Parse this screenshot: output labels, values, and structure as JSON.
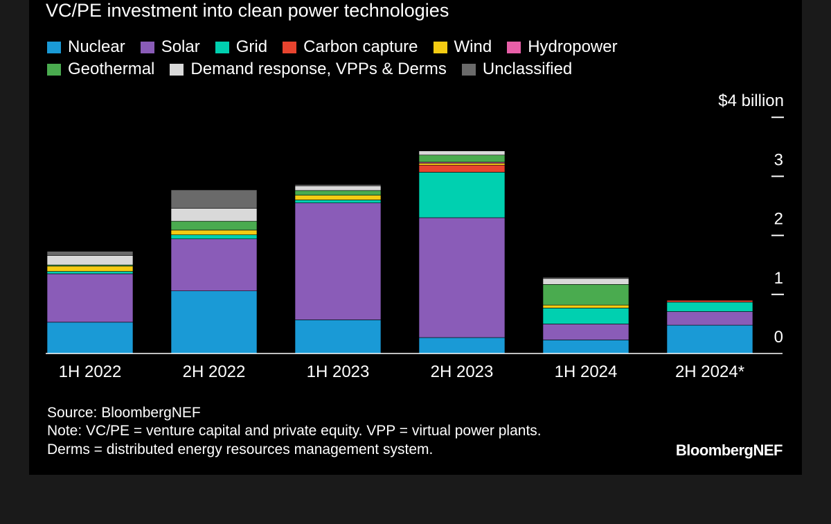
{
  "colors": {
    "background": "#000000",
    "outer": "#1a1a1a",
    "text": "#ffffff"
  },
  "legend": [
    {
      "label": "Nuclear",
      "color": "#1a9ad6"
    },
    {
      "label": "Solar",
      "color": "#8a5cb8"
    },
    {
      "label": "Grid",
      "color": "#00d0b0"
    },
    {
      "label": "Carbon capture",
      "color": "#e8442f"
    },
    {
      "label": "Wind",
      "color": "#f5cc13"
    },
    {
      "label": "Hydropower",
      "color": "#e85fa8"
    },
    {
      "label": "Geothermal",
      "color": "#4aab4f"
    },
    {
      "label": "Demand response, VPPs & Derms",
      "color": "#d9d9d9"
    },
    {
      "label": "Unclassified",
      "color": "#6a6a6a"
    }
  ],
  "chart_data": {
    "type": "bar",
    "stacked": true,
    "title": "VC/PE investment into clean power technologies",
    "ylabel": "$4 billion",
    "ylim": [
      0,
      4
    ],
    "yticks": [
      "0",
      "1",
      "2",
      "3",
      "$4 billion"
    ],
    "categories": [
      "1H 2022",
      "2H 2022",
      "1H 2023",
      "2H 2023",
      "1H 2024",
      "2H 2024*"
    ],
    "series": [
      {
        "name": "Nuclear",
        "color": "#1a9ad6",
        "values": [
          0.53,
          1.06,
          0.57,
          0.27,
          0.23,
          0.48
        ]
      },
      {
        "name": "Solar",
        "color": "#8a5cb8",
        "values": [
          0.82,
          0.88,
          1.98,
          2.03,
          0.27,
          0.23
        ]
      },
      {
        "name": "Grid",
        "color": "#00d0b0",
        "values": [
          0.04,
          0.07,
          0.05,
          0.77,
          0.27,
          0.16
        ]
      },
      {
        "name": "Carbon capture",
        "color": "#e8442f",
        "values": [
          0.0,
          0.0,
          0.0,
          0.12,
          0.0,
          0.03
        ]
      },
      {
        "name": "Wind",
        "color": "#f5cc13",
        "values": [
          0.09,
          0.08,
          0.08,
          0.03,
          0.05,
          0.0
        ]
      },
      {
        "name": "Hydropower",
        "color": "#e85fa8",
        "values": [
          0.0,
          0.0,
          0.0,
          0.02,
          0.0,
          0.0
        ]
      },
      {
        "name": "Geothermal",
        "color": "#4aab4f",
        "values": [
          0.02,
          0.15,
          0.08,
          0.12,
          0.35,
          0.0
        ]
      },
      {
        "name": "Demand response, VPPs & Derms",
        "color": "#d9d9d9",
        "values": [
          0.16,
          0.22,
          0.08,
          0.07,
          0.1,
          0.0
        ]
      },
      {
        "name": "Unclassified",
        "color": "#6a6a6a",
        "values": [
          0.07,
          0.31,
          0.02,
          0.0,
          0.02,
          0.0
        ]
      }
    ],
    "grid": false,
    "legend_position": "top-left"
  },
  "notes": {
    "source": "Source: BloombergNEF",
    "note1": "Note: VC/PE = venture capital and private equity. VPP = virtual power plants.",
    "note2": "Derms = distributed energy resources management system."
  },
  "brand": "BloombergNEF"
}
